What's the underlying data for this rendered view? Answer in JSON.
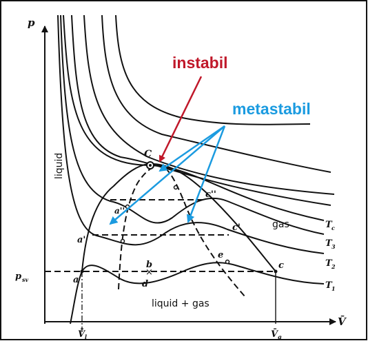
{
  "axes": {
    "y_label": "p",
    "x_label": "V̄",
    "psv_label": "p",
    "psv_sub": "sv",
    "v1_label": "V̄",
    "v1_sub": "l",
    "vg_label": "V̄",
    "vg_sub": "g"
  },
  "regions": {
    "liquid": "liquid",
    "gas": "gas",
    "liquid_gas": "liquid + gas"
  },
  "isotherms": {
    "tc": "T",
    "tc_sub": "c",
    "t3": "T",
    "t3_sub": "3",
    "t2": "T",
    "t2_sub": "2",
    "t1": "T",
    "t1_sub": "1"
  },
  "points": {
    "C": "C",
    "a": "a",
    "b": "b",
    "c": "c",
    "d": "d",
    "e": "e",
    "a_prime": "a'",
    "c_prime": "c'",
    "a_dprime": "a''",
    "c_dprime": "c''"
  },
  "annotations": {
    "instabil": "instabil",
    "metastabil": "metastabil"
  },
  "colors": {
    "instabil": "#c0182a",
    "metastabil": "#1b9be0",
    "ink": "#111111"
  }
}
